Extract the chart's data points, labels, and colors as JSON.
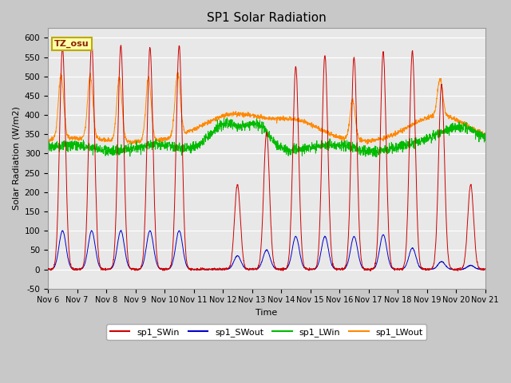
{
  "title": "SP1 Solar Radiation",
  "ylabel": "Solar Radiation (W/m2)",
  "xlabel": "Time",
  "ylim": [
    -50,
    625
  ],
  "yticks": [
    -50,
    0,
    50,
    100,
    150,
    200,
    250,
    300,
    350,
    400,
    450,
    500,
    550,
    600
  ],
  "xtick_labels": [
    "Nov 6",
    "Nov 7",
    "Nov 8",
    "Nov 9",
    "Nov 10",
    "Nov 11",
    "Nov 12",
    "Nov 13",
    "Nov 14",
    "Nov 15",
    "Nov 16",
    "Nov 17",
    "Nov 18",
    "Nov 19",
    "Nov 20",
    "Nov 21"
  ],
  "colors": {
    "sp1_SWin": "#cc0000",
    "sp1_SWout": "#0000cc",
    "sp1_LWin": "#00bb00",
    "sp1_LWout": "#ff8800"
  },
  "legend_labels": [
    "sp1_SWin",
    "sp1_SWout",
    "sp1_LWin",
    "sp1_LWout"
  ],
  "tz_label": "TZ_osu",
  "background_color": "#e8e8e8",
  "grid_color": "#ffffff"
}
